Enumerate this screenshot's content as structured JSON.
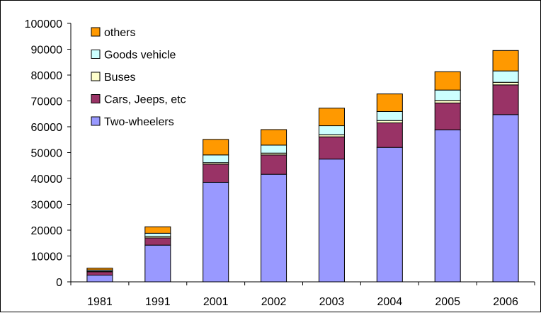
{
  "chart_data": {
    "type": "bar",
    "stacked": true,
    "categories": [
      "1981",
      "1991",
      "2001",
      "2002",
      "2003",
      "2004",
      "2005",
      "2006"
    ],
    "series": [
      {
        "name": "Two-wheelers",
        "color": "#9999ff",
        "values": [
          2600,
          14200,
          38500,
          41600,
          47500,
          52000,
          58800,
          64700
        ]
      },
      {
        "name": "Cars, Jeeps, etc",
        "color": "#993366",
        "values": [
          1300,
          2800,
          7000,
          7500,
          8600,
          9500,
          10400,
          11500
        ]
      },
      {
        "name": "Buses",
        "color": "#ffffcc",
        "values": [
          200,
          600,
          600,
          700,
          800,
          900,
          1000,
          1000
        ]
      },
      {
        "name": "Goods vehicle",
        "color": "#ccffff",
        "values": [
          500,
          1200,
          3000,
          3100,
          3500,
          3500,
          4000,
          4400
        ]
      },
      {
        "name": "others",
        "color": "#ff9900",
        "values": [
          700,
          2500,
          6000,
          6000,
          6800,
          6800,
          7100,
          7900
        ]
      }
    ],
    "ylim": [
      0,
      100000
    ],
    "yticks": [
      0,
      10000,
      20000,
      30000,
      40000,
      50000,
      60000,
      70000,
      80000,
      90000,
      100000
    ],
    "legend_position": "top-left",
    "grid": false
  }
}
